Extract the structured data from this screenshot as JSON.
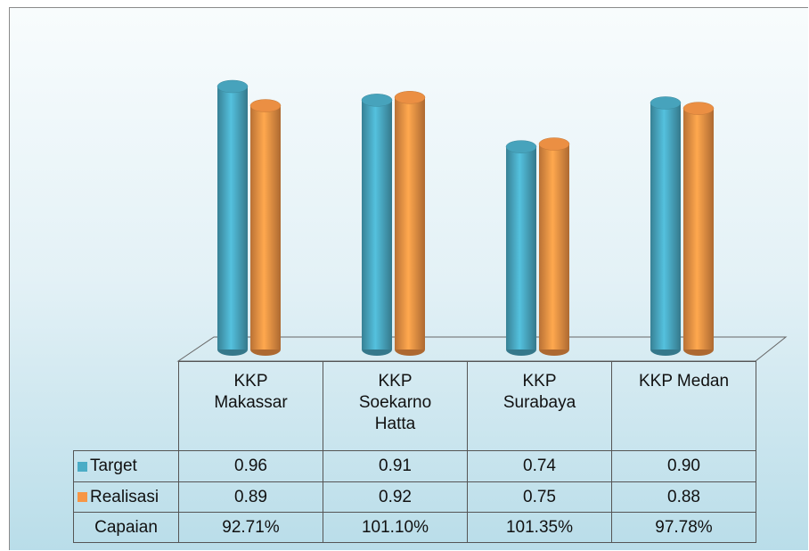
{
  "chart_data": {
    "type": "bar3d",
    "categories": [
      "KKP Makassar",
      "KKP Soekarno Hatta",
      "KKP Surabaya",
      "KKP Medan"
    ],
    "series": [
      {
        "name": "Target",
        "color": "#4bacc6",
        "values": [
          0.96,
          0.91,
          0.74,
          0.9
        ],
        "value_labels": [
          "0.96",
          "0.91",
          "0.74",
          "0.90"
        ]
      },
      {
        "name": "Realisasi",
        "color": "#f79646",
        "values": [
          0.89,
          0.92,
          0.75,
          0.88
        ],
        "value_labels": [
          "0.89",
          "0.92",
          "0.75",
          "0.88"
        ]
      }
    ],
    "table_rows": [
      {
        "name": "Capaian",
        "values": [
          92.71,
          101.1,
          101.35,
          97.78
        ],
        "value_labels": [
          "92.71%",
          "101.10%",
          "101.35%",
          "97.78%"
        ]
      }
    ]
  }
}
